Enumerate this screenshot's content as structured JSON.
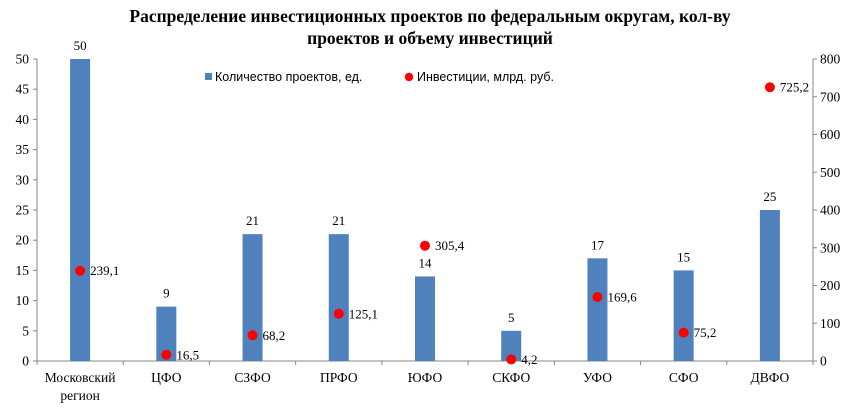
{
  "chart_data": {
    "type": "bar",
    "title_lines": [
      "Распределение инвестиционных проектов по федеральным округам, кол-ву",
      "проектов и объему инвестиций"
    ],
    "categories": [
      "Московский регион",
      "ЦФО",
      "СЗФО",
      "ПРФО",
      "ЮФО",
      "СКФО",
      "УФО",
      "СФО",
      "ДВФО"
    ],
    "category_label_lines": [
      [
        "Московский",
        "регион"
      ],
      [
        "ЦФО"
      ],
      [
        "СЗФО"
      ],
      [
        "ПРФО"
      ],
      [
        "ЮФО"
      ],
      [
        "СКФО"
      ],
      [
        "УФО"
      ],
      [
        "СФО"
      ],
      [
        "ДВФО"
      ]
    ],
    "series": [
      {
        "name": "Количество проектов, ед.",
        "type": "bar",
        "axis": "left",
        "color": "#4F81BD",
        "values": [
          50,
          9,
          21,
          21,
          14,
          5,
          17,
          15,
          25
        ],
        "value_labels": [
          "50",
          "9",
          "21",
          "21",
          "14",
          "5",
          "17",
          "15",
          "25"
        ]
      },
      {
        "name": "Инвестиции, млрд. руб.",
        "type": "scatter",
        "axis": "right",
        "color": "#FF0000",
        "values": [
          239.1,
          16.5,
          68.2,
          125.1,
          305.4,
          4.2,
          169.6,
          75.2,
          725.2
        ],
        "value_labels": [
          "239,1",
          "16,5",
          "68,2",
          "125,1",
          "305,4",
          "4,2",
          "169,6",
          "75,2",
          "725,2"
        ]
      }
    ],
    "y_left": {
      "min": 0,
      "max": 50,
      "ticks": [
        0,
        5,
        10,
        15,
        20,
        25,
        30,
        35,
        40,
        45,
        50
      ]
    },
    "y_right": {
      "min": 0,
      "max": 800,
      "ticks": [
        0,
        100,
        200,
        300,
        400,
        500,
        600,
        700,
        800
      ]
    },
    "grid": false,
    "legend_position": "top"
  }
}
